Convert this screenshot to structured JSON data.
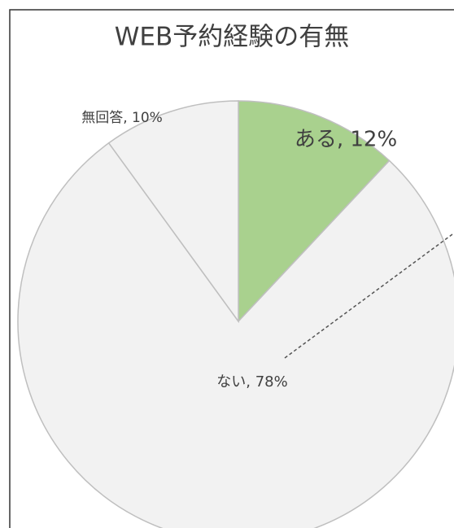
{
  "chart_data": {
    "type": "pie",
    "title": "WEB予約経験の有無",
    "values": [
      12,
      78,
      10
    ],
    "value_labels": [
      "ある, 12%",
      "ない, 78%",
      "無回答, 10%"
    ],
    "colors": [
      "#a9d18e",
      "#f2f2f2",
      "#f2f2f2"
    ]
  }
}
